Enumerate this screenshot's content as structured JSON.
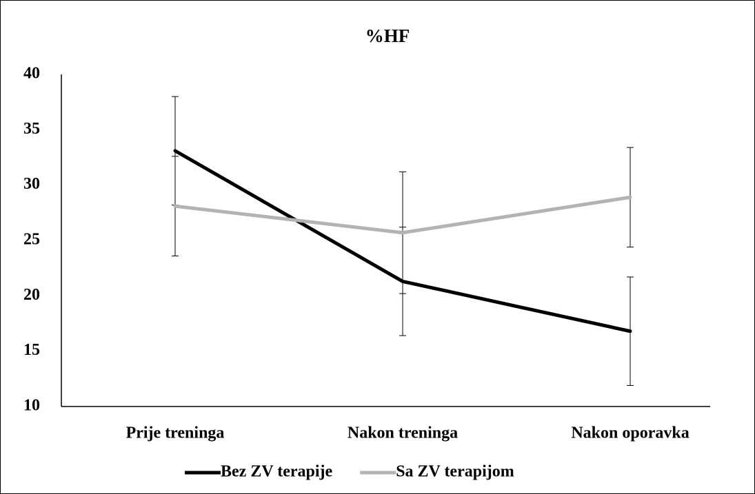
{
  "chart_data": {
    "type": "line",
    "title": "%HF",
    "categories": [
      "Prije treninga",
      "Nakon treninga",
      "Nakon oporavka"
    ],
    "series": [
      {
        "name": "Bez ZV terapije",
        "color": "#000000",
        "values": [
          33.1,
          21.3,
          16.8
        ],
        "errors": [
          4.9,
          4.9,
          4.9
        ]
      },
      {
        "name": "Sa ZV terapijom",
        "color": "#b3b3b3",
        "values": [
          28.1,
          25.7,
          28.9
        ],
        "errors": [
          4.5,
          5.5,
          4.5
        ]
      }
    ],
    "ylim": [
      10,
      40
    ],
    "yticks": [
      10,
      15,
      20,
      25,
      30,
      35,
      40
    ],
    "grid": false,
    "legend": "bottom"
  }
}
